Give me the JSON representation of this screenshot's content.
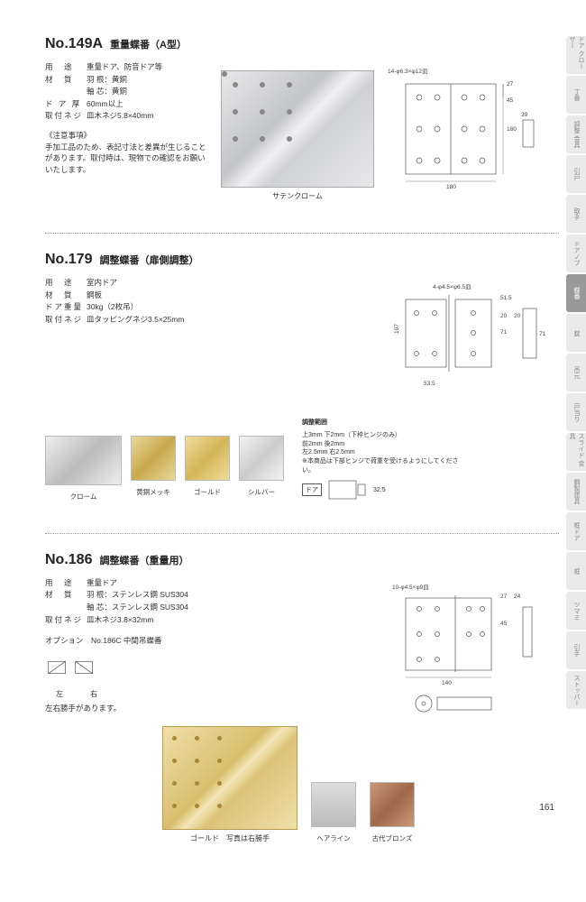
{
  "page_number": "161",
  "tabs": [
    "ドア\nクローザー",
    "丁番",
    "調整\n金具",
    "引戸",
    "取手",
    "ドアノブ",
    "蝶番",
    "錠",
    "吊元",
    "戸当り",
    "スライド\n金具",
    "鋼製建具",
    "框ドア",
    "框",
    "ツマミ",
    "引手",
    "ストッパー"
  ],
  "active_tab_index": 6,
  "products": [
    {
      "no": "No.149A",
      "title": "重量蝶番（A型）",
      "specs": [
        {
          "label": "用　途",
          "value": "重量ドア、防音ドア等"
        },
        {
          "label": "材　質",
          "value": "羽 根：黄銅\n軸 芯：黄銅"
        },
        {
          "label": "ド ア 厚",
          "value": "60mm以上"
        },
        {
          "label": "取付ネジ",
          "value": "皿木ネジ5.8×40mm"
        }
      ],
      "note_header": "《注意事項》",
      "note": "手加工品のため、表記寸法と差異が生じることがあります。取付時は、現物での確認をお願いいたします。",
      "main_caption": "サテンクローム",
      "dim_label": "14-φ6.3×φ12皿",
      "dims": {
        "w": "180",
        "h1": "27",
        "h2": "45",
        "h3": "39",
        "ht": "180"
      }
    },
    {
      "no": "No.179",
      "title": "調整蝶番（扉側調整）",
      "specs": [
        {
          "label": "用　途",
          "value": "室内ドア"
        },
        {
          "label": "材　質",
          "value": "鋼板"
        },
        {
          "label": "ドア重量",
          "value": "30kg（2枚吊）"
        },
        {
          "label": "取付ネジ",
          "value": "皿タッピングネジ3.5×25mm"
        }
      ],
      "swatches": [
        {
          "cls": "sw-chrome",
          "label": "クローム"
        },
        {
          "cls": "sw-brass",
          "label": "黄銅メッキ"
        },
        {
          "cls": "sw-gold",
          "label": "ゴールド"
        },
        {
          "cls": "sw-silver",
          "label": "シルバー"
        }
      ],
      "dim_label": "4-φ4.5×φ6.5皿",
      "tech_note_title": "調整範囲",
      "tech_note": "上3mm 下2mm（下枠ヒンジのみ）\n前2mm 後2mm\n左2.5mm 右2.5mm\n※本商品は下部ヒンジで荷重を受けるようにしてください。",
      "side_label": "ドア",
      "side_dim": "32.5"
    },
    {
      "no": "No.186",
      "title": "調整蝶番（重量用）",
      "specs": [
        {
          "label": "用　途",
          "value": "重量ドア"
        },
        {
          "label": "材　質",
          "value": "羽 根：ステンレス鋼 SUS304\n軸 芯：ステンレス鋼 SUS304"
        },
        {
          "label": "取付ネジ",
          "value": "皿木ネジ3.8×32mm"
        }
      ],
      "option": "オプション　No.186C  中間吊蝶番",
      "lr_label_l": "左",
      "lr_label_r": "右",
      "lr_note": "左右勝手があります。",
      "main_caption": "ゴールド　写真は右勝手",
      "swatches": [
        {
          "cls": "sw-hairline",
          "label": "ヘアライン"
        },
        {
          "cls": "sw-bronze",
          "label": "古代ブロンズ"
        }
      ],
      "dim_label": "10-φ4.5×φ9皿",
      "dims": {
        "w": "140",
        "h1": "27",
        "h2": "24",
        "h3": "45"
      }
    }
  ]
}
